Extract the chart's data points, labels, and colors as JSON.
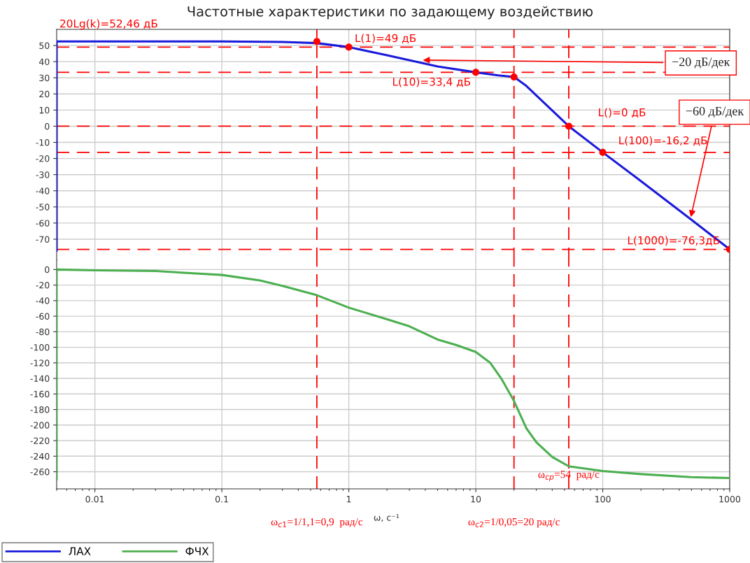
{
  "chart_data": [
    {
      "type": "line",
      "title": "Частотные характеристики по задающему воздействию",
      "log": "x",
      "grid": true,
      "legend": "bottom",
      "tick_labels": "y",
      "xlim": [
        0.005,
        1000
      ],
      "xticks": [
        {
          "value": 0.01,
          "label": null
        },
        {
          "value": 0.1,
          "label": null
        },
        {
          "value": 1,
          "label": null
        },
        {
          "value": 10,
          "label": null
        },
        {
          "value": 100,
          "label": null
        },
        {
          "value": 1000,
          "label": null
        }
      ],
      "ylim": [
        -83,
        60
      ],
      "yticks": [
        50,
        40,
        30,
        20,
        10,
        0,
        -10,
        -20,
        -30,
        -40,
        -50,
        -60,
        -70
      ],
      "series": [
        {
          "name": "ЛАХ",
          "color": "#1a1adb",
          "x": [
            0.005,
            0.005,
            0.1,
            0.3,
            0.56,
            1,
            2,
            5,
            10,
            15,
            20,
            25,
            54,
            100,
            200,
            500,
            1000
          ],
          "values": [
            -77,
            52.5,
            52.5,
            52.2,
            51.5,
            49,
            44,
            37,
            33.4,
            31.5,
            30.5,
            25,
            0,
            -16.2,
            -34,
            -58,
            -76.3
          ]
        },
        {
          "type": "scatter",
          "color": "#ff0000",
          "marker": "circle",
          "x": [
            0.56,
            1,
            10,
            20,
            54,
            100,
            1000
          ],
          "values": [
            52.5,
            49,
            33.4,
            30.5,
            0,
            -16.2,
            -76.3
          ]
        }
      ],
      "ref_lines": [
        {
          "axis": "y",
          "value": 49,
          "color": "#ff0000",
          "line_style": "dashed"
        },
        {
          "axis": "y",
          "value": 33.4,
          "color": "#ff0000",
          "line_style": "dashed"
        },
        {
          "axis": "y",
          "value": 0,
          "color": "#ff0000",
          "line_style": "dashed"
        },
        {
          "axis": "y",
          "value": -16.2,
          "color": "#ff0000",
          "line_style": "dashed"
        },
        {
          "axis": "y",
          "value": -76.3,
          "color": "#ff0000",
          "line_style": "dashed"
        },
        {
          "axis": "x",
          "value": 0.56,
          "color": "#ff0000",
          "line_style": "dashed"
        },
        {
          "axis": "x",
          "value": 20,
          "color": "#ff0000",
          "line_style": "dashed"
        },
        {
          "axis": "x",
          "value": 54,
          "color": "#ff0000",
          "line_style": "dashed"
        }
      ],
      "annotations": [
        "20Lg(k)=52,46 дБ",
        {
          "text": "L(1)=49 дБ",
          "x": 1,
          "y": 49
        },
        {
          "text": "L(10)=33,4 дБ",
          "x": 10,
          "y": 33.4
        },
        {
          "text": "L()=0 дБ",
          "x": 54,
          "y": 0
        },
        {
          "text": "L(100)=-16,2 дБ",
          "x": 100,
          "y": -16.2
        },
        {
          "text": "L(1000)=-76,3дБ",
          "x": 1000,
          "y": -76.3
        },
        {
          "text": "−20 дБ/дек",
          "x": 3.7,
          "y": 41
        },
        {
          "text": "−60 дБ/дек",
          "x": 490,
          "y": -57.5
        }
      ]
    },
    {
      "type": "line",
      "log": "x",
      "grid": true,
      "legend": "bottom",
      "xlabel": "ω, с⁻¹",
      "xlim": [
        0.005,
        1000
      ],
      "xticks": [
        0.01,
        0.1,
        1,
        10,
        100,
        1000
      ],
      "ylim": [
        -282,
        12
      ],
      "yticks": [
        0,
        -20,
        -40,
        -60,
        -80,
        -100,
        -120,
        -140,
        -160,
        -180,
        -200,
        -220,
        -240,
        -260
      ],
      "series": [
        {
          "name": "ФЧХ",
          "color": "#4caf50",
          "x": [
            0.005,
            0.005,
            0.01,
            0.03,
            0.1,
            0.2,
            0.3,
            0.56,
            1,
            2,
            3,
            5,
            7,
            10,
            13,
            16,
            20,
            25,
            30,
            40,
            54,
            100,
            200,
            500,
            1000
          ],
          "values": [
            -270,
            0,
            -1,
            -2,
            -7,
            -14,
            -21,
            -33,
            -49,
            -64,
            -73,
            -90,
            -97,
            -106,
            -120,
            -141,
            -169,
            -204,
            -222,
            -241,
            -253,
            -259,
            -263,
            -267,
            -268
          ]
        }
      ],
      "ref_lines": [
        {
          "axis": "x",
          "value": 0.56,
          "label": "ω$_{c1}$=1/1,1=0,9  рад/с",
          "color": "#ff0000",
          "line_style": "dashed"
        },
        {
          "axis": "x",
          "value": 20,
          "label": "ω$_{c2}$=1/0,05=20 рад/с",
          "color": "#ff0000",
          "line_style": "dashed"
        },
        {
          "axis": "x",
          "value": 54,
          "label": "ω$_{ср}$=54  рад/с",
          "color": "#ff0000",
          "line_style": "dashed"
        }
      ]
    }
  ]
}
